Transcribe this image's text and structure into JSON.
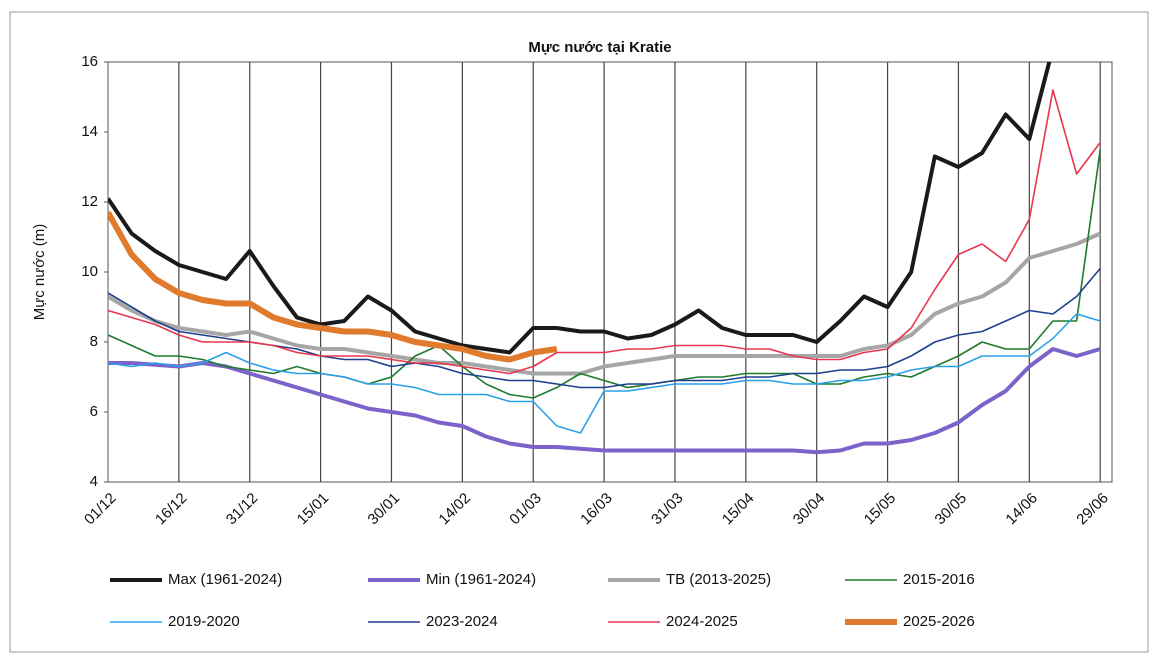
{
  "chart_data": {
    "type": "line",
    "title": "Mực nước tại Kratie",
    "y_label": "Mực nước (m)",
    "categories": [
      "01/12",
      null,
      null,
      "16/12",
      null,
      null,
      "31/12",
      null,
      null,
      "15/01",
      null,
      null,
      "30/01",
      null,
      null,
      "14/02",
      null,
      null,
      "01/03",
      null,
      null,
      "16/03",
      null,
      null,
      "31/03",
      null,
      null,
      "15/04",
      null,
      null,
      "30/04",
      null,
      null,
      "15/05",
      null,
      null,
      "30/05",
      null,
      null,
      "14/06",
      null,
      null,
      "29/06"
    ],
    "ylim": [
      4,
      16
    ],
    "yticks": [
      4,
      6,
      8,
      10,
      12,
      14,
      16
    ],
    "grid": "vertical",
    "series": [
      {
        "name": "Max (1961-2024)",
        "color": "#1a1a1a",
        "width": 4,
        "values": [
          12.1,
          11.1,
          10.6,
          10.2,
          10.0,
          9.8,
          10.6,
          9.6,
          8.7,
          8.5,
          8.6,
          9.3,
          8.9,
          8.3,
          8.1,
          7.9,
          7.8,
          7.7,
          8.4,
          8.4,
          8.3,
          8.3,
          8.1,
          8.2,
          8.5,
          8.9,
          8.4,
          8.2,
          8.2,
          8.2,
          8.0,
          8.6,
          9.3,
          9.0,
          10.0,
          13.3,
          13.0,
          13.4,
          14.5,
          13.8,
          16.4,
          null,
          null
        ]
      },
      {
        "name": "Min (1961-2024)",
        "color": "#7b63c9",
        "width": 4,
        "values": [
          7.4,
          7.4,
          7.35,
          7.3,
          7.4,
          7.3,
          7.1,
          6.9,
          6.7,
          6.5,
          6.3,
          6.1,
          6.0,
          5.9,
          5.7,
          5.6,
          5.3,
          5.1,
          5.0,
          5.0,
          4.95,
          4.9,
          4.9,
          4.9,
          4.9,
          4.9,
          4.9,
          4.9,
          4.9,
          4.9,
          4.85,
          4.9,
          5.1,
          5.1,
          5.2,
          5.4,
          5.7,
          6.2,
          6.6,
          7.3,
          7.8,
          7.6,
          7.8
        ]
      },
      {
        "name": "TB (2013-2025)",
        "color": "#a6a6a6",
        "width": 4,
        "values": [
          9.3,
          8.9,
          8.6,
          8.4,
          8.3,
          8.2,
          8.3,
          8.1,
          7.9,
          7.8,
          7.8,
          7.7,
          7.6,
          7.5,
          7.4,
          7.4,
          7.3,
          7.2,
          7.1,
          7.1,
          7.1,
          7.3,
          7.4,
          7.5,
          7.6,
          7.6,
          7.6,
          7.6,
          7.6,
          7.6,
          7.6,
          7.6,
          7.8,
          7.9,
          8.2,
          8.8,
          9.1,
          9.3,
          9.7,
          10.4,
          10.6,
          10.8,
          11.1
        ]
      },
      {
        "name": "2015-2016",
        "color": "#1e7b2c",
        "width": 1.6,
        "values": [
          8.2,
          7.9,
          7.6,
          7.6,
          7.5,
          7.3,
          7.2,
          7.1,
          7.3,
          7.1,
          7.0,
          6.8,
          7.0,
          7.6,
          7.9,
          7.3,
          6.8,
          6.5,
          6.4,
          6.7,
          7.1,
          6.9,
          6.7,
          6.8,
          6.9,
          7.0,
          7.0,
          7.1,
          7.1,
          7.1,
          6.8,
          6.8,
          7.0,
          7.1,
          7.0,
          7.3,
          7.6,
          8.0,
          7.8,
          7.8,
          8.6,
          8.6,
          13.5
        ]
      },
      {
        "name": "2019-2020",
        "color": "#2aa0e8",
        "width": 1.6,
        "values": [
          7.4,
          7.3,
          7.4,
          7.3,
          7.4,
          7.7,
          7.4,
          7.2,
          7.1,
          7.1,
          7.0,
          6.8,
          6.8,
          6.7,
          6.5,
          6.5,
          6.5,
          6.3,
          6.3,
          5.6,
          5.4,
          6.6,
          6.6,
          6.7,
          6.8,
          6.8,
          6.8,
          6.9,
          6.9,
          6.8,
          6.8,
          6.9,
          6.9,
          7.0,
          7.2,
          7.3,
          7.3,
          7.6,
          7.6,
          7.6,
          8.1,
          8.8,
          8.6
        ]
      },
      {
        "name": "2023-2024",
        "color": "#1f3f8f",
        "width": 1.6,
        "values": [
          9.4,
          9.0,
          8.6,
          8.3,
          8.2,
          8.1,
          8.0,
          7.9,
          7.8,
          7.6,
          7.5,
          7.5,
          7.3,
          7.4,
          7.3,
          7.1,
          7.0,
          6.9,
          6.9,
          6.8,
          6.7,
          6.7,
          6.8,
          6.8,
          6.9,
          6.9,
          6.9,
          7.0,
          7.0,
          7.1,
          7.1,
          7.2,
          7.2,
          7.3,
          7.6,
          8.0,
          8.2,
          8.3,
          8.6,
          8.9,
          8.8,
          9.3,
          10.1
        ]
      },
      {
        "name": "2024-2025",
        "color": "#e8364c",
        "width": 1.6,
        "values": [
          8.9,
          8.7,
          8.5,
          8.2,
          8.0,
          8.0,
          8.0,
          7.9,
          7.7,
          7.6,
          7.6,
          7.6,
          7.5,
          7.4,
          7.4,
          7.3,
          7.2,
          7.1,
          7.3,
          7.7,
          7.7,
          7.7,
          7.8,
          7.8,
          7.9,
          7.9,
          7.9,
          7.8,
          7.8,
          7.6,
          7.5,
          7.5,
          7.7,
          7.8,
          8.4,
          9.5,
          10.5,
          10.8,
          10.3,
          11.5,
          15.2,
          12.8,
          13.7
        ]
      },
      {
        "name": "2025-2026",
        "color": "#e07a2c",
        "width": 6,
        "values": [
          11.7,
          10.5,
          9.8,
          9.4,
          9.2,
          9.1,
          9.1,
          8.7,
          8.5,
          8.4,
          8.3,
          8.3,
          8.2,
          8.0,
          7.9,
          7.8,
          7.6,
          7.5,
          7.7,
          7.8,
          null,
          null,
          null,
          null,
          null,
          null,
          null,
          null,
          null,
          null,
          null,
          null,
          null,
          null,
          null,
          null,
          null,
          null,
          null,
          null,
          null,
          null,
          null
        ]
      }
    ]
  }
}
